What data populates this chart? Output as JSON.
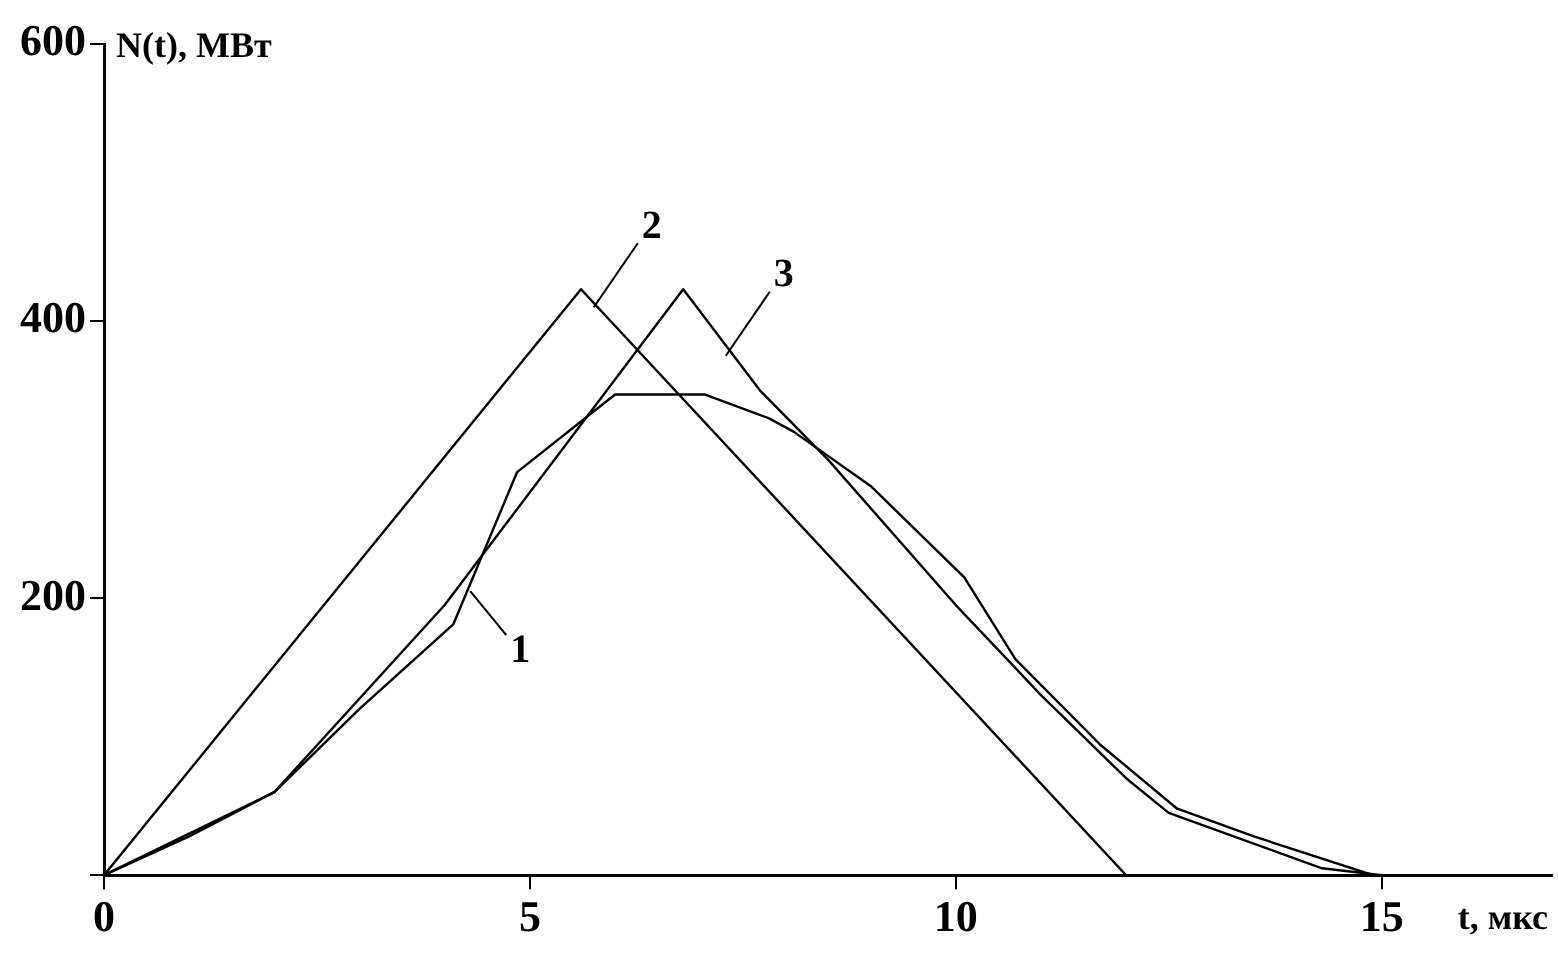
{
  "chart_data": {
    "type": "line",
    "xlabel": "t, мкс",
    "ylabel": "N(t), МВт",
    "xlim": [
      0,
      17
    ],
    "ylim": [
      0,
      600
    ],
    "xticks": [
      0,
      5,
      10,
      15
    ],
    "yticks": [
      {
        "value": 0,
        "label": null
      },
      200,
      400,
      600
    ],
    "grid": false,
    "legend": false,
    "marker": "none",
    "line_style": "solid",
    "series": [
      {
        "color": "#000000",
        "x": [
          0,
          1,
          2,
          3,
          4.1,
          4.85,
          6,
          7.05,
          7.8,
          8.1,
          9,
          10.1,
          10.7,
          11.7,
          12.6,
          13.5,
          14.9
        ],
        "values": [
          0,
          30,
          60,
          120,
          181,
          291,
          347,
          347,
          330,
          320,
          281,
          215,
          156,
          94,
          48,
          28,
          0
        ]
      },
      {
        "color": "#000000",
        "x": [
          0,
          5.6,
          12
        ],
        "values": [
          0,
          423,
          0
        ]
      },
      {
        "color": "#000000",
        "x": [
          0,
          1,
          2,
          4,
          6.8,
          7.7,
          8.5,
          10,
          11,
          12,
          12.5,
          14.3,
          15
        ],
        "values": [
          0,
          28,
          60,
          195,
          423,
          350,
          300,
          195,
          130,
          70,
          45,
          5,
          0
        ]
      }
    ],
    "annotations": [
      {
        "text": "1",
        "x": 4.3,
        "y": 205
      },
      {
        "text": "2",
        "x": 5.75,
        "y": 410
      },
      {
        "text": "3",
        "x": 7.3,
        "y": 375
      }
    ]
  }
}
